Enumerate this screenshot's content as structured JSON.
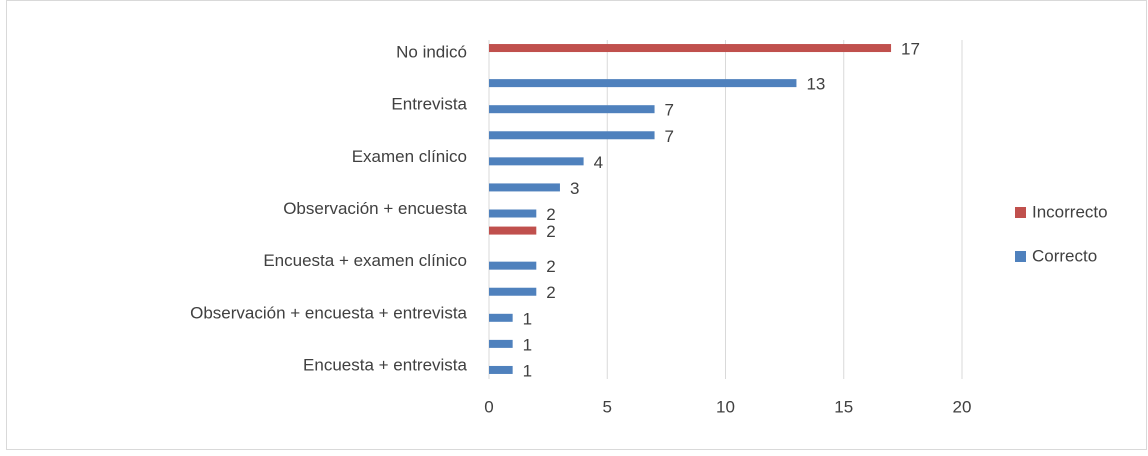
{
  "chart_data": {
    "type": "bar",
    "orientation": "horizontal",
    "categories": [
      "No indicó",
      null,
      "Entrevista",
      null,
      "Examen clínico",
      null,
      "Observación + encuesta",
      null,
      "Encuesta + examen clínico",
      null,
      "Observación + encuesta + entrevista",
      null,
      "Encuesta + entrevista"
    ],
    "series": [
      {
        "name": "Incorrecto",
        "color": "#c0504d",
        "values": [
          17,
          null,
          null,
          null,
          null,
          null,
          null,
          2,
          null,
          null,
          null,
          null,
          null
        ]
      },
      {
        "name": "Correcto",
        "color": "#4f81bd",
        "values": [
          null,
          13,
          7,
          7,
          4,
          3,
          2,
          null,
          2,
          2,
          1,
          1,
          1
        ]
      }
    ],
    "xlim": [
      0,
      20
    ],
    "xticks": [
      0,
      5,
      10,
      15,
      20
    ],
    "grid": true,
    "legend": "right"
  }
}
